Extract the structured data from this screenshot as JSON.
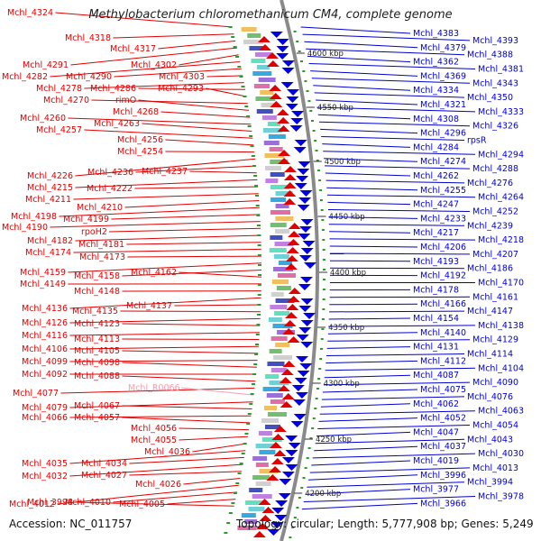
{
  "title": "Methylobacterium chloromethanicum CM4, complete genome",
  "footer": {
    "accession": "Accession: NC_011757",
    "topology": "Topology: circular; Length: 5,777,908 bp; Genes: 5,249"
  },
  "colors": {
    "left_labels": "#e00000",
    "right_labels": "#0000d0",
    "highlight_label": "#f0a0b0",
    "backbone": "#8a8a8a",
    "forward_genes": "#e00000",
    "reverse_genes": "#0000e0",
    "tick_marks": "#2a9a2a"
  },
  "scale_ticks": [
    "4600 kbp",
    "4550 kbp",
    "4500 kbp",
    "4450 kbp",
    "4400 kbp",
    "4350 kbp",
    "4300 kbp",
    "4250 kbp",
    "4200 kbp"
  ],
  "left_labels": [
    "Mchl_4324",
    "Mchl_4318",
    "Mchl_4317",
    "Mchl_4291",
    "Mchl_4302",
    "Mchl_4282",
    "Mchl_4290",
    "Mchl_4303",
    "Mchl_4278",
    "Mchl_4286",
    "Mchl_4293",
    "Mchl_4270",
    "rimO",
    "Mchl_4268",
    "Mchl_4260",
    "Mchl_4263",
    "Mchl_4257",
    "Mchl_4256",
    "Mchl_4254",
    "Mchl_4226",
    "Mchl_4236",
    "Mchl_4237",
    "Mchl_4215",
    "Mchl_4222",
    "Mchl_4211",
    "Mchl_4210",
    "Mchl_4198",
    "Mchl_4199",
    "Mchl_4190",
    "rpoH2",
    "Mchl_4182",
    "Mchl_4181",
    "Mchl_4174",
    "Mchl_4173",
    "Mchl_4159",
    "Mchl_4158",
    "Mchl_4162",
    "Mchl_4149",
    "Mchl_4148",
    "Mchl_4136",
    "Mchl_4137",
    "Mchl_4135",
    "Mchl_4126",
    "Mchl_4123",
    "Mchl_4116",
    "Mchl_4113",
    "Mchl_4106",
    "Mchl_4105",
    "Mchl_4099",
    "Mchl_4098",
    "Mchl_4092",
    "Mchl_4088",
    "Mchl_4077",
    "Mchl_R0066",
    "Mchl_4079",
    "Mchl_4067",
    "Mchl_4066",
    "Mchl_4057",
    "Mchl_4056",
    "Mchl_4055",
    "Mchl_4036",
    "Mchl_4035",
    "Mchl_4034",
    "Mchl_4032",
    "Mchl_4027",
    "Mchl_4026",
    "Mchl_4012",
    "Mchl_4010",
    "Mchl_4005",
    "Mchl_3998"
  ],
  "right_labels": [
    "Mchl_4383",
    "Mchl_4393",
    "Mchl_4379",
    "Mchl_4388",
    "Mchl_4362",
    "Mchl_4381",
    "Mchl_4369",
    "Mchl_4343",
    "Mchl_4334",
    "Mchl_4350",
    "Mchl_4321",
    "Mchl_4333",
    "Mchl_4308",
    "Mchl_4326",
    "Mchl_4296",
    "rpsR",
    "Mchl_4284",
    "Mchl_4294",
    "Mchl_4274",
    "Mchl_4288",
    "Mchl_4262",
    "Mchl_4276",
    "Mchl_4255",
    "Mchl_4264",
    "Mchl_4247",
    "Mchl_4252",
    "Mchl_4233",
    "Mchl_4239",
    "Mchl_4217",
    "Mchl_4218",
    "Mchl_4206",
    "Mchl_4207",
    "Mchl_4193",
    "Mchl_4186",
    "Mchl_4192",
    "Mchl_4170",
    "Mchl_4178",
    "Mchl_4161",
    "Mchl_4166",
    "Mchl_4147",
    "Mchl_4154",
    "Mchl_4138",
    "Mchl_4140",
    "Mchl_4129",
    "Mchl_4131",
    "Mchl_4114",
    "Mchl_4112",
    "Mchl_4104",
    "Mchl_4087",
    "Mchl_4090",
    "Mchl_4075",
    "Mchl_4076",
    "Mchl_4062",
    "Mchl_4063",
    "Mchl_4052",
    "Mchl_4054",
    "Mchl_4047",
    "Mchl_4043",
    "Mchl_4037",
    "Mchl_4030",
    "Mchl_4019",
    "Mchl_4013",
    "Mchl_3996",
    "Mchl_3994",
    "Mchl_3977",
    "Mchl_3978",
    "Mchl_3966"
  ]
}
